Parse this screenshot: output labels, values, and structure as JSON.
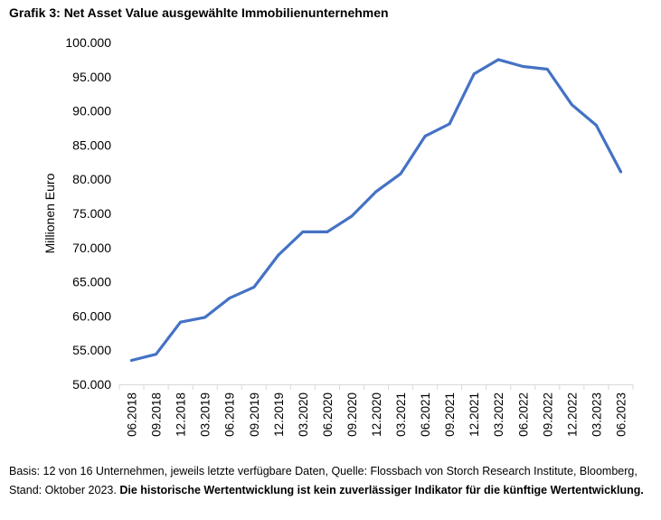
{
  "chart_data": {
    "type": "line",
    "title": "Grafik 3: Net Asset Value ausgewählte Immobilienunternehmen",
    "ylabel": "Millionen Euro",
    "xlabel": "",
    "ylim": [
      50000,
      100000
    ],
    "y_ticks": [
      50000,
      55000,
      60000,
      65000,
      70000,
      75000,
      80000,
      85000,
      90000,
      95000,
      100000
    ],
    "y_tick_labels": [
      "50.000",
      "55.000",
      "60.000",
      "65.000",
      "70.000",
      "75.000",
      "80.000",
      "85.000",
      "90.000",
      "95.000",
      "100.000"
    ],
    "grid": false,
    "categories": [
      "06.2018",
      "09.2018",
      "12.2018",
      "03.2019",
      "06.2019",
      "09.2019",
      "12.2019",
      "03.2020",
      "06.2020",
      "09.2020",
      "12.2020",
      "03.2021",
      "06.2021",
      "09.2021",
      "12.2021",
      "03.2022",
      "06.2022",
      "09.2022",
      "12.2022",
      "03.2023",
      "06.2023"
    ],
    "series": [
      {
        "name": "Net Asset Value",
        "color": "#4472C4",
        "values": [
          53500,
          54400,
          59100,
          59800,
          62600,
          64200,
          68900,
          72300,
          72300,
          74600,
          78200,
          80800,
          86300,
          88100,
          95400,
          97500,
          96500,
          96100,
          90900,
          87900,
          81100
        ]
      }
    ]
  },
  "footnote": {
    "normal": "Basis: 12 von 16 Unternehmen, jeweils letzte verfügbare Daten, Quelle: Flossbach von Storch Research Institute, Bloomberg, Stand: Oktober 2023.",
    "bold": "Die historische Wertentwicklung ist kein zuverlässiger Indikator für die künftige Wertentwicklung."
  }
}
